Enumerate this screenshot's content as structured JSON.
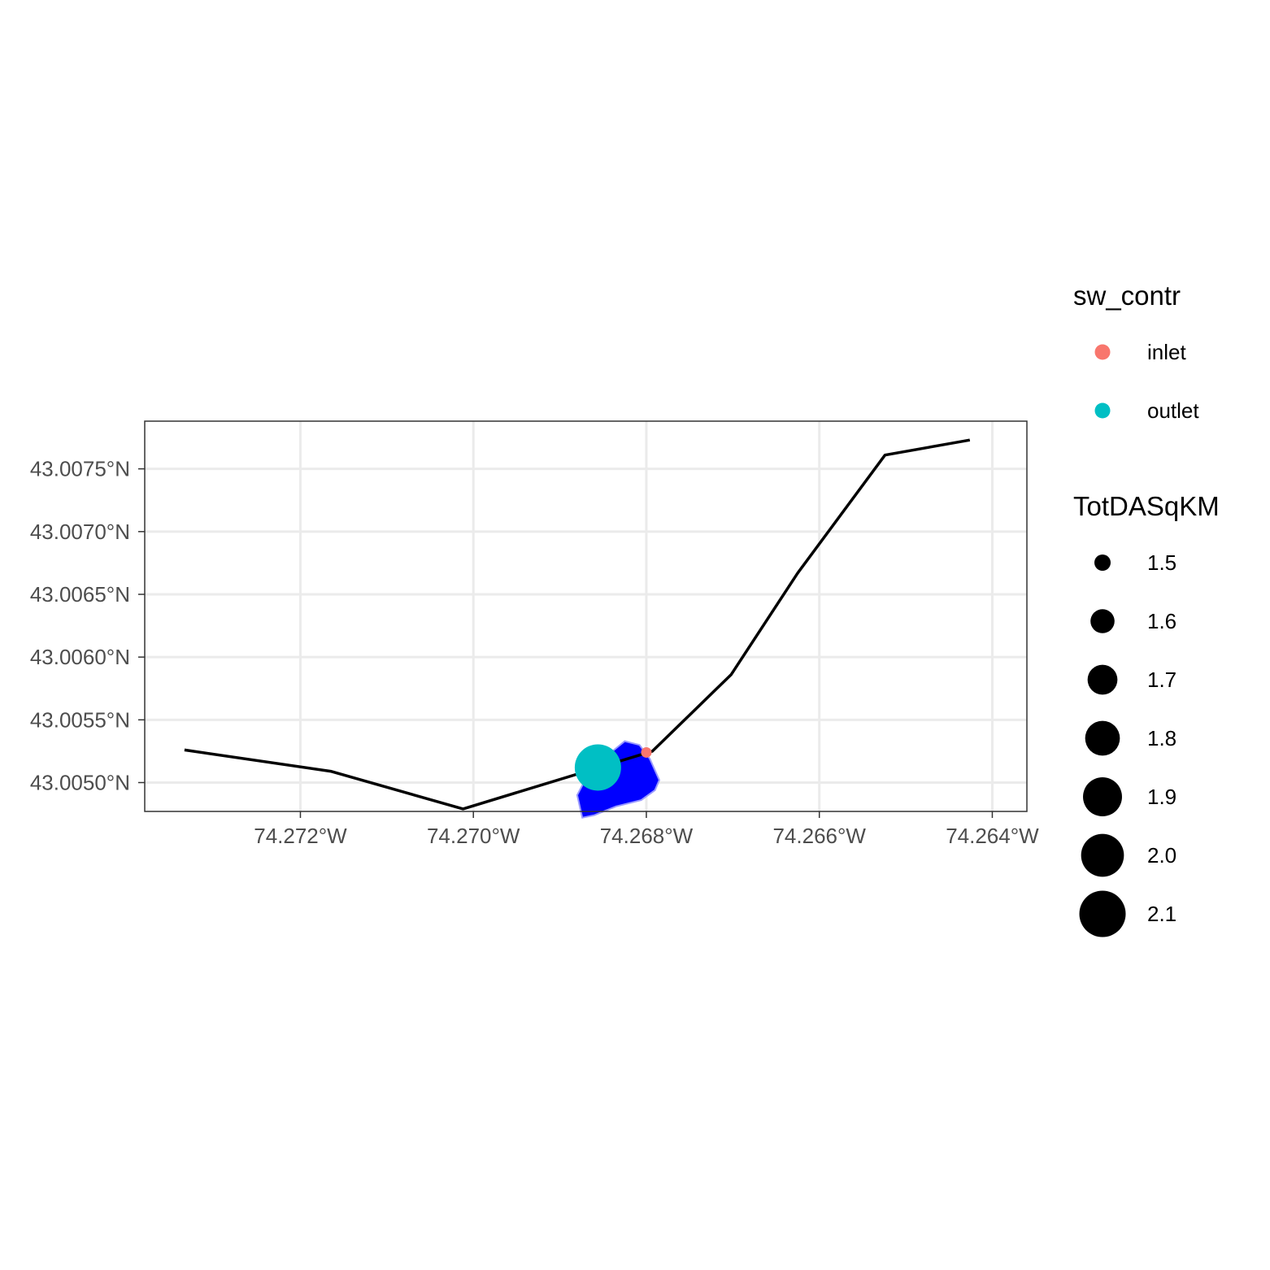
{
  "chart_data": {
    "type": "map",
    "crs": "geographic",
    "xlim": [
      -74.2738,
      -74.2636
    ],
    "ylim": [
      43.00477,
      43.00788
    ],
    "x_ticks": [
      {
        "value": -74.272,
        "label": "74.272°W"
      },
      {
        "value": -74.27,
        "label": "74.270°W"
      },
      {
        "value": -74.268,
        "label": "74.268°W"
      },
      {
        "value": -74.266,
        "label": "74.266°W"
      },
      {
        "value": -74.264,
        "label": "74.264°W"
      }
    ],
    "y_ticks": [
      {
        "value": 43.005,
        "label": "43.0050°N"
      },
      {
        "value": 43.0055,
        "label": "43.0055°N"
      },
      {
        "value": 43.006,
        "label": "43.0060°N"
      },
      {
        "value": 43.0065,
        "label": "43.0065°N"
      },
      {
        "value": 43.007,
        "label": "43.0070°N"
      },
      {
        "value": 43.0075,
        "label": "43.0075°N"
      }
    ],
    "grid": true,
    "flowline": {
      "color": "#000000",
      "coords": [
        [
          -74.27334,
          43.00526
        ],
        [
          -74.27165,
          43.00509
        ],
        [
          -74.27012,
          43.00479
        ],
        [
          -74.26793,
          43.00525
        ],
        [
          -74.26702,
          43.00586
        ],
        [
          -74.26625,
          43.00667
        ],
        [
          -74.26524,
          43.00761
        ],
        [
          -74.26426,
          43.00773
        ]
      ]
    },
    "catchment": {
      "fill": "#0000ff",
      "stroke": "#9999ff",
      "coords": [
        [
          -74.26864,
          43.00511
        ],
        [
          -74.26825,
          43.00533
        ],
        [
          -74.26808,
          43.0053
        ],
        [
          -74.26796,
          43.00519
        ],
        [
          -74.26785,
          43.00502
        ],
        [
          -74.2679,
          43.00494
        ],
        [
          -74.26806,
          43.00486
        ],
        [
          -74.26835,
          43.00481
        ],
        [
          -74.2686,
          43.00474
        ],
        [
          -74.26874,
          43.00472
        ],
        [
          -74.2688,
          43.0049
        ]
      ]
    },
    "points": [
      {
        "name": "outlet",
        "x": -74.26856,
        "y": 43.00512,
        "TotDASqKM": 2.1
      },
      {
        "name": "inlet",
        "x": -74.268,
        "y": 43.00524,
        "TotDASqKM": 1.2
      }
    ],
    "legends": [
      {
        "title": "sw_contr",
        "type": "color",
        "entries": [
          {
            "label": "inlet",
            "color": "#F8766D"
          },
          {
            "label": "outlet",
            "color": "#00BFC4"
          }
        ]
      },
      {
        "title": "TotDASqKM",
        "type": "size",
        "entries": [
          {
            "label": "1.5",
            "value": 1.5
          },
          {
            "label": "1.6",
            "value": 1.6
          },
          {
            "label": "1.7",
            "value": 1.7
          },
          {
            "label": "1.8",
            "value": 1.8
          },
          {
            "label": "1.9",
            "value": 1.9
          },
          {
            "label": "2.0",
            "value": 2.0
          },
          {
            "label": "2.1",
            "value": 2.1
          }
        ]
      }
    ],
    "legend_position": "right"
  }
}
